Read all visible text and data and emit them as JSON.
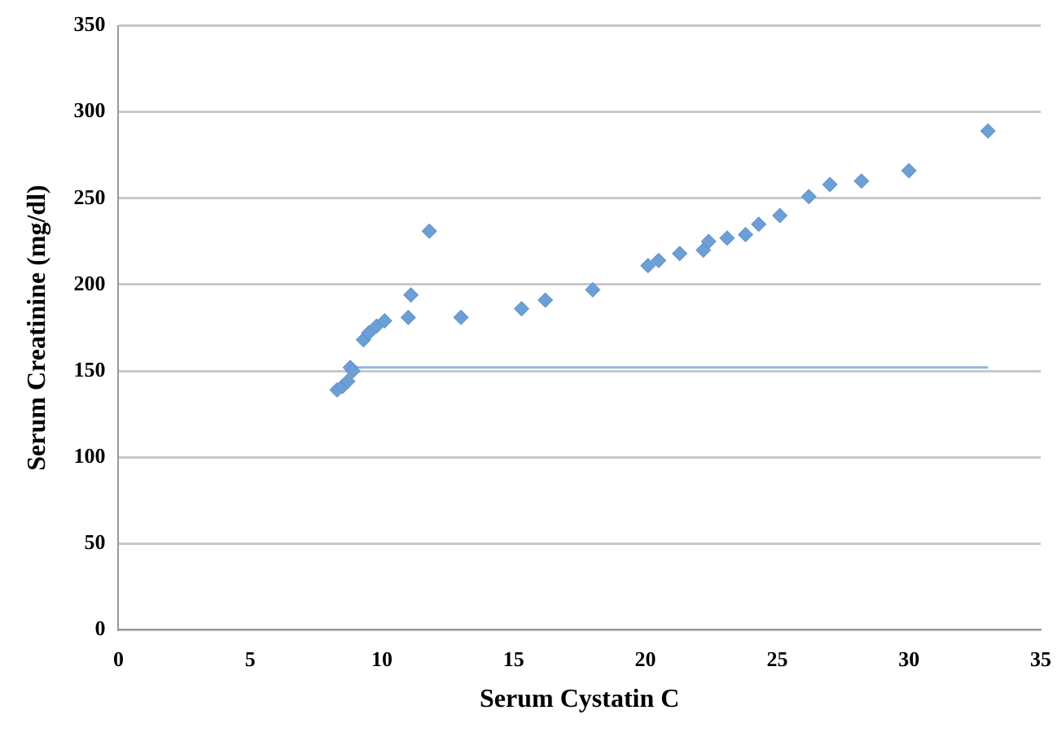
{
  "chart_data": {
    "type": "scatter",
    "xlabel": "Serum Cystatin C",
    "ylabel": "Serum Creatinine (mg/dl)",
    "xlim": [
      0,
      35
    ],
    "xticks": [
      0,
      5,
      10,
      15,
      20,
      25,
      30,
      35
    ],
    "ylim": [
      0,
      350
    ],
    "yticks": [
      0,
      50,
      100,
      150,
      200,
      250,
      300,
      350
    ],
    "grid": "y",
    "legend": false,
    "marker": "diamond",
    "series": [
      {
        "color": "#6b9fd6",
        "x": [
          8.3,
          8.5,
          8.7,
          8.8,
          8.9,
          9.3,
          9.5,
          9.8,
          10.1,
          11.0,
          11.1,
          11.8,
          13.0,
          15.3,
          16.2,
          18.0,
          20.1,
          20.5,
          21.3,
          22.2,
          22.4,
          23.1,
          23.8,
          24.3,
          25.1,
          26.2,
          27.0,
          28.2,
          30.0,
          33.0
        ],
        "values": [
          139,
          141,
          144,
          152,
          150,
          168,
          172,
          176,
          179,
          181,
          194,
          231,
          181,
          186,
          191,
          197,
          211,
          214,
          218,
          220,
          225,
          227,
          229,
          235,
          240,
          251,
          258,
          260,
          266,
          289
        ]
      },
      {
        "type": "line",
        "color": "#8fb4e3",
        "marker": "none",
        "x": [
          8.8,
          33.0
        ],
        "values": [
          152,
          152
        ]
      }
    ]
  }
}
